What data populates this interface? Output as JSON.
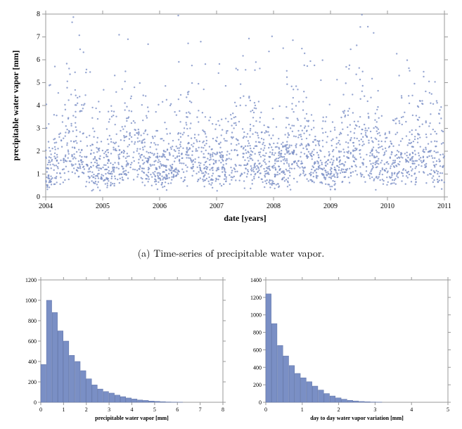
{
  "topChart": {
    "type": "scatter",
    "xlabel": "date [years]",
    "ylabel": "precipitable water vapor [mm]",
    "xlim": [
      2004,
      2011
    ],
    "ylim": [
      0,
      8
    ],
    "xtick_step": 1,
    "ytick_step": 1,
    "xtick_labels": [
      "2004",
      "2005",
      "2006",
      "2007",
      "2008",
      "2009",
      "2010",
      "2011"
    ],
    "ytick_labels": [
      "0",
      "1",
      "2",
      "3",
      "4",
      "5",
      "6",
      "7",
      "8"
    ],
    "marker_color": "#7a8fc5",
    "marker_size": 1.2,
    "frame_color": "#999999",
    "background_color": "#ffffff",
    "label_fontsize": 12,
    "tick_fontsize": 10,
    "n_points": 2400,
    "seed": 7,
    "seasonal_amplitude": 0.9,
    "base_mean": 1.3,
    "lognorm_sigma": 0.55
  },
  "caption_a": "(a) Time-series of precipitable water vapor.",
  "histLeft": {
    "type": "histogram",
    "xlabel": "precipitable water vapor [mm]",
    "xlim": [
      0,
      8
    ],
    "ylim": [
      0,
      1200
    ],
    "xtick_step": 1,
    "ytick_step": 200,
    "xtick_labels": [
      "0",
      "1",
      "2",
      "3",
      "4",
      "5",
      "6",
      "7",
      "8"
    ],
    "ytick_labels": [
      "0",
      "200",
      "400",
      "600",
      "800",
      "1000",
      "1200"
    ],
    "bar_color": "#7a8fc5",
    "bar_edge": "#5a6fa5",
    "frame_color": "#999999",
    "background_color": "#ffffff",
    "label_fontsize": 8,
    "tick_fontsize": 8,
    "bin_width": 0.25,
    "data": [
      {
        "x": 0.125,
        "y": 370
      },
      {
        "x": 0.375,
        "y": 1000
      },
      {
        "x": 0.625,
        "y": 880
      },
      {
        "x": 0.875,
        "y": 700
      },
      {
        "x": 1.125,
        "y": 600
      },
      {
        "x": 1.375,
        "y": 460
      },
      {
        "x": 1.625,
        "y": 400
      },
      {
        "x": 1.875,
        "y": 310
      },
      {
        "x": 2.125,
        "y": 230
      },
      {
        "x": 2.375,
        "y": 170
      },
      {
        "x": 2.625,
        "y": 130
      },
      {
        "x": 2.875,
        "y": 105
      },
      {
        "x": 3.125,
        "y": 90
      },
      {
        "x": 3.375,
        "y": 70
      },
      {
        "x": 3.625,
        "y": 55
      },
      {
        "x": 3.875,
        "y": 42
      },
      {
        "x": 4.125,
        "y": 32
      },
      {
        "x": 4.375,
        "y": 22
      },
      {
        "x": 4.625,
        "y": 18
      },
      {
        "x": 4.875,
        "y": 12
      },
      {
        "x": 5.125,
        "y": 9
      },
      {
        "x": 5.375,
        "y": 6
      },
      {
        "x": 5.625,
        "y": 3
      },
      {
        "x": 5.875,
        "y": 2
      },
      {
        "x": 6.125,
        "y": 1
      }
    ]
  },
  "histRight": {
    "type": "histogram",
    "xlabel": "day to day water vapor variation [mm]",
    "xlim": [
      0,
      5
    ],
    "ylim": [
      0,
      1400
    ],
    "xtick_step": 1,
    "ytick_step": 200,
    "xtick_labels": [
      "0",
      "1",
      "2",
      "3",
      "4",
      "5"
    ],
    "ytick_labels": [
      "0",
      "200",
      "400",
      "600",
      "800",
      "1000",
      "1200",
      "1400"
    ],
    "bar_color": "#7a8fc5",
    "bar_edge": "#5a6fa5",
    "frame_color": "#999999",
    "background_color": "#ffffff",
    "label_fontsize": 8,
    "tick_fontsize": 8,
    "bin_width": 0.16,
    "data": [
      {
        "x": 0.08,
        "y": 1240
      },
      {
        "x": 0.24,
        "y": 900
      },
      {
        "x": 0.4,
        "y": 650
      },
      {
        "x": 0.56,
        "y": 530
      },
      {
        "x": 0.72,
        "y": 420
      },
      {
        "x": 0.88,
        "y": 330
      },
      {
        "x": 1.04,
        "y": 280
      },
      {
        "x": 1.2,
        "y": 235
      },
      {
        "x": 1.36,
        "y": 185
      },
      {
        "x": 1.52,
        "y": 140
      },
      {
        "x": 1.68,
        "y": 100
      },
      {
        "x": 1.84,
        "y": 72
      },
      {
        "x": 2.0,
        "y": 50
      },
      {
        "x": 2.16,
        "y": 35
      },
      {
        "x": 2.32,
        "y": 22
      },
      {
        "x": 2.48,
        "y": 15
      },
      {
        "x": 2.64,
        "y": 9
      },
      {
        "x": 2.8,
        "y": 6
      },
      {
        "x": 2.96,
        "y": 3
      },
      {
        "x": 3.12,
        "y": 2
      }
    ]
  }
}
